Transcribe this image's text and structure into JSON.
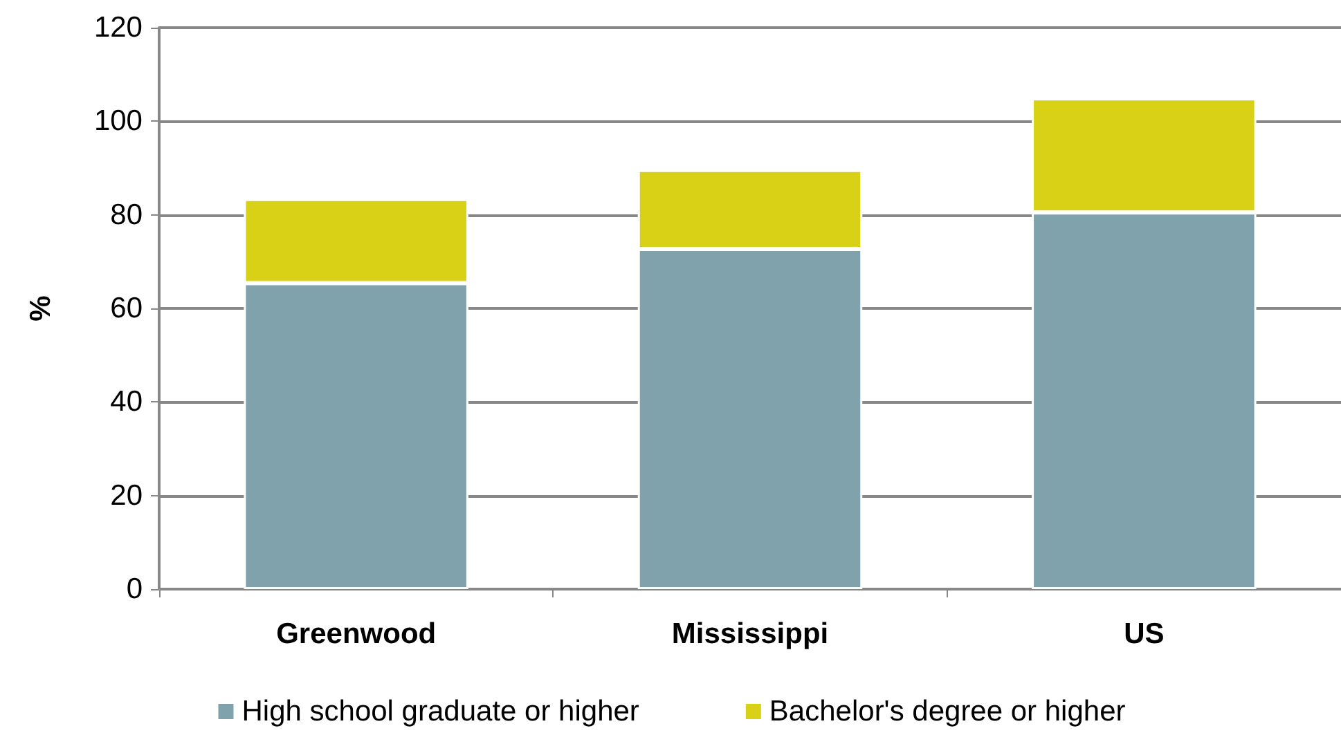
{
  "chart_data": {
    "type": "bar",
    "ylabel": "%",
    "categories": [
      "Greenwood",
      "Mississippi",
      "US"
    ],
    "stacked": true,
    "series": [
      {
        "name": "High school graduate or higher",
        "color": "#7fa2ad",
        "values": [
          65.4,
          72.7,
          80.5
        ]
      },
      {
        "name": "Bachelor's degree or higher",
        "color": "#d9d116",
        "values": [
          18.0,
          16.9,
          24.4
        ]
      }
    ],
    "ylim": [
      0,
      120
    ],
    "yticks": [
      0,
      20,
      40,
      60,
      80,
      100,
      120
    ],
    "grid": "y",
    "legend": "bottom"
  }
}
